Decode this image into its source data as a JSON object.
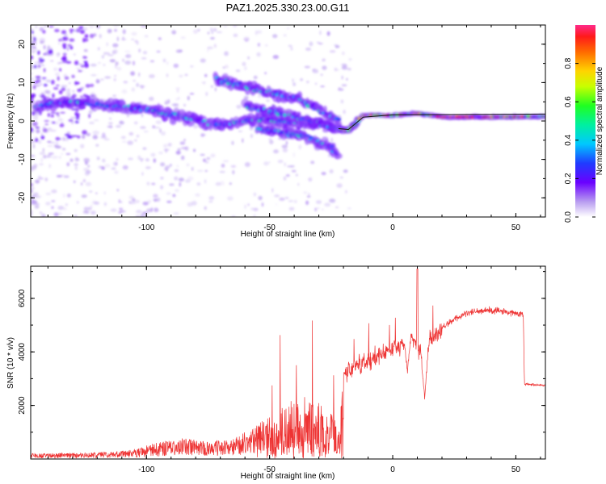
{
  "title": "PAZ1.2025.330.23.00.G11",
  "colors": {
    "snr_line": "#ee3333",
    "doppler_line": "#1a1a1a",
    "axis": "#000000"
  },
  "chart_data": [
    {
      "type": "heatmap",
      "xlabel": "Height of straight line (km)",
      "ylabel": "Frequency (Hz)",
      "xlim": [
        -147,
        62
      ],
      "ylim": [
        -25,
        25
      ],
      "xticks": [
        -100,
        -50,
        0,
        50
      ],
      "xtick_labels": [
        "-100",
        "-50",
        "0",
        "50"
      ],
      "yticks": [
        -20,
        -10,
        0,
        10,
        20
      ],
      "ytick_labels": [
        "-20",
        "-10",
        "0",
        "10",
        "20"
      ],
      "colorbar": {
        "label": "Normalized spectral amplitude",
        "range": [
          0,
          1
        ],
        "ticks": [
          0.0,
          0.2,
          0.4,
          0.6,
          0.8
        ],
        "tick_labels": [
          "0.0",
          "0.2",
          "0.4",
          "0.6",
          "0.8"
        ],
        "colormap": "rainbow-white"
      },
      "ridges": [
        {
          "name": "main-branch",
          "points": [
            [
              -145,
              4
            ],
            [
              -130,
              5
            ],
            [
              -115,
              4
            ],
            [
              -100,
              3
            ],
            [
              -85,
              1
            ],
            [
              -70,
              -1
            ],
            [
              -55,
              0.5
            ],
            [
              -40,
              -0.5
            ],
            [
              -30,
              -0.5
            ],
            [
              -22,
              -2
            ],
            [
              -18,
              -2.5
            ],
            [
              -12,
              1.5
            ],
            [
              0,
              1.5
            ],
            [
              10,
              2
            ],
            [
              20,
              1
            ],
            [
              40,
              1
            ],
            [
              62,
              1.2
            ]
          ]
        },
        {
          "name": "upper-branch",
          "points": [
            [
              -72,
              11
            ],
            [
              -60,
              9
            ],
            [
              -48,
              7
            ],
            [
              -38,
              5.5
            ],
            [
              -30,
              3
            ],
            [
              -22,
              0
            ]
          ]
        },
        {
          "name": "middle-branch",
          "points": [
            [
              -60,
              4
            ],
            [
              -50,
              2.5
            ],
            [
              -40,
              1
            ],
            [
              -30,
              -0.5
            ],
            [
              -24,
              -2
            ]
          ]
        },
        {
          "name": "lower-branch",
          "points": [
            [
              -55,
              -2
            ],
            [
              -45,
              -3
            ],
            [
              -35,
              -4
            ],
            [
              -27,
              -6
            ],
            [
              -22,
              -9
            ]
          ]
        }
      ]
    },
    {
      "type": "line",
      "xlabel": "Height of straight line (km)",
      "ylabel": "SNR (10 * v/v)",
      "xlim": [
        -147,
        62
      ],
      "ylim": [
        0,
        7200
      ],
      "xticks": [
        -100,
        -50,
        0,
        50
      ],
      "xtick_labels": [
        "-100",
        "-50",
        "0",
        "50"
      ],
      "yticks": [
        2000,
        4000,
        6000
      ],
      "ytick_labels": [
        "2000",
        "4000",
        "6000"
      ],
      "envelope": [
        [
          -147,
          200
        ],
        [
          -120,
          250
        ],
        [
          -105,
          350
        ],
        [
          -95,
          650
        ],
        [
          -85,
          800
        ],
        [
          -75,
          650
        ],
        [
          -65,
          750
        ],
        [
          -55,
          1300
        ],
        [
          -45,
          1900
        ],
        [
          -38,
          2400
        ],
        [
          -32,
          2300
        ],
        [
          -26,
          1800
        ],
        [
          -22,
          1400
        ],
        [
          -20,
          3200
        ],
        [
          -10,
          3700
        ],
        [
          0,
          4100
        ],
        [
          5,
          4300
        ],
        [
          8,
          4500
        ],
        [
          12,
          3900
        ],
        [
          15,
          4400
        ],
        [
          20,
          4900
        ],
        [
          25,
          5200
        ],
        [
          30,
          5450
        ],
        [
          40,
          5550
        ],
        [
          50,
          5450
        ],
        [
          53,
          5400
        ],
        [
          53.5,
          2800
        ],
        [
          62,
          2750
        ]
      ],
      "features": [
        {
          "x": 10,
          "y": 7100,
          "label": "spike"
        },
        {
          "x": 6,
          "y": 3000,
          "label": "dip"
        },
        {
          "x": 13,
          "y": 2100,
          "label": "dip"
        }
      ]
    }
  ]
}
